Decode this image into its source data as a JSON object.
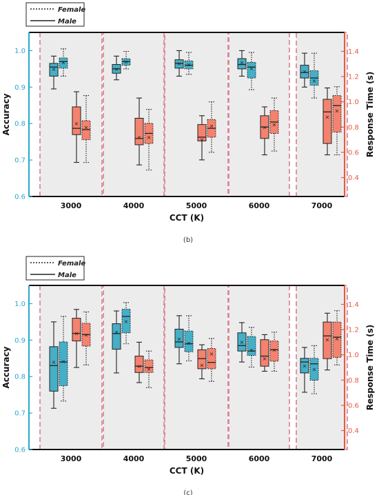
{
  "legend": {
    "female": "Female",
    "male": "Male"
  },
  "colors": {
    "accuracy_box": "#45afc7",
    "response_box": "#f5826e",
    "accuracy_axis": "#29a8cc",
    "response_axis": "#e8593f",
    "panel_bg": "#ececec",
    "panel_border": "#d87f91"
  },
  "chart_data": [
    {
      "type": "box",
      "caption": "(b)",
      "xlabel": "CCT (K)",
      "ylabel_left": "Accuracy",
      "ylabel_right": "Response Time (s)",
      "categories": [
        "3000",
        "4000",
        "5000",
        "6000",
        "7000"
      ],
      "y_left_lim": [
        0.6,
        1.05
      ],
      "y_left_ticks": [
        "0.6",
        "0.7",
        "0.8",
        "0.9",
        "1.0"
      ],
      "y_right_lim": [
        0.25,
        1.55
      ],
      "y_right_ticks": [
        "0.4",
        "0.6",
        "0.8",
        "1.0",
        "1.2",
        "1.4"
      ],
      "series": [
        {
          "name": "Accuracy (Male)",
          "axis": "left",
          "style": "solid",
          "boxes": [
            {
              "min": 0.895,
              "q1": 0.93,
              "median": 0.955,
              "q3": 0.965,
              "max": 0.985,
              "mean": 0.95
            },
            {
              "min": 0.92,
              "q1": 0.938,
              "median": 0.95,
              "q3": 0.962,
              "max": 0.985,
              "mean": 0.95
            },
            {
              "min": 0.93,
              "q1": 0.952,
              "median": 0.965,
              "q3": 0.975,
              "max": 1.0,
              "mean": 0.965
            },
            {
              "min": 0.93,
              "q1": 0.95,
              "median": 0.962,
              "q3": 0.978,
              "max": 1.0,
              "mean": 0.968
            },
            {
              "min": 0.9,
              "q1": 0.925,
              "median": 0.94,
              "q3": 0.96,
              "max": 0.993,
              "mean": 0.943
            }
          ]
        },
        {
          "name": "Accuracy (Female)",
          "axis": "left",
          "style": "dotted",
          "boxes": [
            {
              "min": 0.93,
              "q1": 0.952,
              "median": 0.97,
              "q3": 0.98,
              "max": 1.005,
              "mean": 0.968
            },
            {
              "min": 0.95,
              "q1": 0.96,
              "median": 0.97,
              "q3": 0.978,
              "max": 0.998,
              "mean": 0.97
            },
            {
              "min": 0.935,
              "q1": 0.95,
              "median": 0.96,
              "q3": 0.972,
              "max": 0.995,
              "mean": 0.962
            },
            {
              "min": 0.893,
              "q1": 0.925,
              "median": 0.955,
              "q3": 0.968,
              "max": 0.995,
              "mean": 0.952
            },
            {
              "min": 0.87,
              "q1": 0.905,
              "median": 0.925,
              "q3": 0.945,
              "max": 0.993,
              "mean": 0.918
            }
          ]
        },
        {
          "name": "Response Time (Male)",
          "axis": "right",
          "style": "solid",
          "boxes": [
            {
              "min": 0.52,
              "q1": 0.74,
              "median": 0.79,
              "q3": 0.96,
              "max": 1.08,
              "mean": 0.83
            },
            {
              "min": 0.5,
              "q1": 0.66,
              "median": 0.71,
              "q3": 0.87,
              "max": 1.03,
              "mean": 0.72
            },
            {
              "min": 0.54,
              "q1": 0.69,
              "median": 0.72,
              "q3": 0.82,
              "max": 0.89,
              "mean": 0.7
            },
            {
              "min": 0.58,
              "q1": 0.71,
              "median": 0.8,
              "q3": 0.89,
              "max": 0.96,
              "mean": 0.8
            },
            {
              "min": 0.58,
              "q1": 0.67,
              "median": 0.92,
              "q3": 1.02,
              "max": 1.11,
              "mean": 0.88
            }
          ]
        },
        {
          "name": "Response Time (Female)",
          "axis": "right",
          "style": "dotted",
          "boxes": [
            {
              "min": 0.52,
              "q1": 0.7,
              "median": 0.78,
              "q3": 0.85,
              "max": 1.05,
              "mean": 0.8
            },
            {
              "min": 0.46,
              "q1": 0.67,
              "median": 0.75,
              "q3": 0.83,
              "max": 0.94,
              "mean": 0.72
            },
            {
              "min": 0.6,
              "q1": 0.72,
              "median": 0.79,
              "q3": 0.86,
              "max": 1.0,
              "mean": 0.81
            },
            {
              "min": 0.61,
              "q1": 0.75,
              "median": 0.84,
              "q3": 0.93,
              "max": 1.03,
              "mean": 0.82
            },
            {
              "min": 0.58,
              "q1": 0.76,
              "median": 0.97,
              "q3": 1.05,
              "max": 1.12,
              "mean": 0.93
            }
          ]
        }
      ]
    },
    {
      "type": "box",
      "caption": "(c)",
      "xlabel": "CCT (K)",
      "ylabel_left": "Accuracy",
      "ylabel_right": "Response Time (s)",
      "categories": [
        "3000",
        "4000",
        "5000",
        "6000",
        "7000"
      ],
      "y_left_lim": [
        0.6,
        1.05
      ],
      "y_left_ticks": [
        "0.6",
        "0.7",
        "0.8",
        "0.9",
        "1.0"
      ],
      "y_right_lim": [
        0.25,
        1.55
      ],
      "y_right_ticks": [
        "0.4",
        "0.6",
        "0.8",
        "1.0",
        "1.2",
        "1.4"
      ],
      "series": [
        {
          "name": "Accuracy (Male)",
          "axis": "left",
          "style": "solid",
          "boxes": [
            {
              "min": 0.713,
              "q1": 0.76,
              "median": 0.83,
              "q3": 0.882,
              "max": 0.95,
              "mean": 0.84
            },
            {
              "min": 0.81,
              "q1": 0.875,
              "median": 0.918,
              "q3": 0.945,
              "max": 0.98,
              "mean": 0.922
            },
            {
              "min": 0.835,
              "q1": 0.88,
              "median": 0.895,
              "q3": 0.93,
              "max": 0.967,
              "mean": 0.903
            },
            {
              "min": 0.84,
              "q1": 0.87,
              "median": 0.885,
              "q3": 0.92,
              "max": 0.948,
              "mean": 0.895
            },
            {
              "min": 0.757,
              "q1": 0.81,
              "median": 0.84,
              "q3": 0.85,
              "max": 0.88,
              "mean": 0.83
            }
          ]
        },
        {
          "name": "Accuracy (Female)",
          "axis": "left",
          "style": "dotted",
          "boxes": [
            {
              "min": 0.733,
              "q1": 0.775,
              "median": 0.84,
              "q3": 0.895,
              "max": 0.965,
              "mean": 0.842
            },
            {
              "min": 0.89,
              "q1": 0.92,
              "median": 0.965,
              "q3": 0.985,
              "max": 1.003,
              "mean": 0.952
            },
            {
              "min": 0.843,
              "q1": 0.868,
              "median": 0.89,
              "q3": 0.925,
              "max": 0.967,
              "mean": 0.892
            },
            {
              "min": 0.826,
              "q1": 0.858,
              "median": 0.87,
              "q3": 0.91,
              "max": 0.935,
              "mean": 0.873
            },
            {
              "min": 0.753,
              "q1": 0.79,
              "median": 0.835,
              "q3": 0.85,
              "max": 0.885,
              "mean": 0.82
            }
          ]
        },
        {
          "name": "Response Time (Male)",
          "axis": "right",
          "style": "solid",
          "boxes": [
            {
              "min": 0.9,
              "q1": 1.11,
              "median": 1.17,
              "q3": 1.29,
              "max": 1.36,
              "mean": 1.17
            },
            {
              "min": 0.78,
              "q1": 0.86,
              "median": 0.91,
              "q3": 0.99,
              "max": 1.1,
              "mean": 0.91
            },
            {
              "min": 0.81,
              "q1": 0.89,
              "median": 0.97,
              "q3": 1.04,
              "max": 1.08,
              "mean": 0.92
            },
            {
              "min": 0.87,
              "q1": 0.91,
              "median": 0.99,
              "q3": 1.12,
              "max": 1.16,
              "mean": 0.97
            },
            {
              "min": 0.88,
              "q1": 0.97,
              "median": 1.15,
              "q3": 1.26,
              "max": 1.33,
              "mean": 1.12
            }
          ]
        },
        {
          "name": "Response Time (Female)",
          "axis": "right",
          "style": "dotted",
          "boxes": [
            {
              "min": 0.92,
              "q1": 1.07,
              "median": 1.16,
              "q3": 1.25,
              "max": 1.34,
              "mean": 1.16
            },
            {
              "min": 0.74,
              "q1": 0.86,
              "median": 0.9,
              "q3": 0.96,
              "max": 1.03,
              "mean": 0.89
            },
            {
              "min": 0.79,
              "q1": 0.89,
              "median": 0.94,
              "q3": 1.05,
              "max": 1.13,
              "mean": 1.01
            },
            {
              "min": 0.87,
              "q1": 0.95,
              "median": 1.04,
              "q3": 1.11,
              "max": 1.18,
              "mean": 1.04
            },
            {
              "min": 0.92,
              "q1": 0.98,
              "median": 1.14,
              "q3": 1.26,
              "max": 1.35,
              "mean": 1.13
            }
          ]
        }
      ]
    }
  ]
}
